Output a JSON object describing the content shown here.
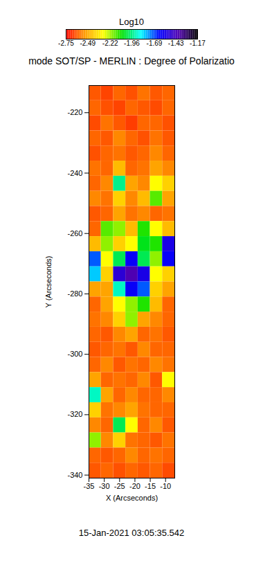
{
  "chart_data": {
    "type": "heatmap",
    "title": "mode SOT/SP - MERLIN : Degree of Polarizatio",
    "xlabel": "X (Arcseconds)",
    "ylabel": "Y (Arcseconds)",
    "xlim": [
      -35,
      -7
    ],
    "ylim": [
      -341,
      -211
    ],
    "xticks": [
      -35,
      -30,
      -25,
      -20,
      -15,
      -10
    ],
    "yticks": [
      -340,
      -320,
      -300,
      -280,
      -260,
      -240,
      -220
    ],
    "x_bins": [
      -35,
      -31,
      -27,
      -23,
      -19,
      -15,
      -11,
      -7
    ],
    "y_bins": [
      -211,
      -216,
      -221,
      -226,
      -231,
      -236,
      -241,
      -246,
      -251,
      -256,
      -261,
      -266,
      -271,
      -276,
      -281,
      -286,
      -291,
      -296,
      -301,
      -306,
      -311,
      -316,
      -321,
      -326,
      -331,
      -336,
      -341
    ],
    "values": [
      [
        -2.62,
        -2.65,
        -2.6,
        -2.63,
        -2.58,
        -2.62,
        -2.6
      ],
      [
        -2.6,
        -2.63,
        -2.65,
        -2.6,
        -2.62,
        -2.64,
        -2.6
      ],
      [
        -2.64,
        -2.58,
        -2.62,
        -2.66,
        -2.6,
        -2.6,
        -2.63
      ],
      [
        -2.6,
        -2.62,
        -2.55,
        -2.6,
        -2.63,
        -2.58,
        -2.62
      ],
      [
        -2.63,
        -2.6,
        -2.58,
        -2.62,
        -2.6,
        -2.55,
        -2.6
      ],
      [
        -2.58,
        -2.6,
        -2.45,
        -2.6,
        -2.58,
        -2.5,
        -2.55
      ],
      [
        -2.6,
        -2.55,
        -1.95,
        -2.5,
        -2.55,
        -2.3,
        -2.4
      ],
      [
        -2.55,
        -2.58,
        -2.4,
        -2.55,
        -2.45,
        -2.15,
        -2.5
      ],
      [
        -2.62,
        -2.6,
        -2.5,
        -2.58,
        -2.55,
        -2.6,
        -2.58
      ],
      [
        -2.6,
        -2.15,
        -2.2,
        -2.45,
        -2.1,
        -2.3,
        -2.45
      ],
      [
        -2.45,
        -2.2,
        -2.4,
        -2.3,
        -2.05,
        -2.1,
        -1.55
      ],
      [
        -1.7,
        -2.3,
        -2.0,
        -1.6,
        -2.0,
        -2.2,
        -1.6
      ],
      [
        -1.8,
        -2.4,
        -1.5,
        -1.4,
        -1.55,
        -2.3,
        -2.4
      ],
      [
        -2.5,
        -2.5,
        -1.9,
        -1.6,
        -1.7,
        -2.4,
        -2.5
      ],
      [
        -2.6,
        -2.5,
        -2.3,
        -2.2,
        -2.1,
        -2.45,
        -2.6
      ],
      [
        -2.58,
        -2.55,
        -2.4,
        -2.2,
        -2.5,
        -2.55,
        -2.6
      ],
      [
        -2.6,
        -2.62,
        -2.55,
        -2.5,
        -2.6,
        -2.58,
        -2.62
      ],
      [
        -2.62,
        -2.6,
        -2.58,
        -2.62,
        -2.55,
        -2.6,
        -2.6
      ],
      [
        -2.6,
        -2.55,
        -2.62,
        -2.58,
        -2.6,
        -2.55,
        -2.58
      ],
      [
        -2.5,
        -2.6,
        -2.58,
        -2.6,
        -2.55,
        -2.62,
        -2.3
      ],
      [
        -1.9,
        -2.5,
        -2.6,
        -2.55,
        -2.6,
        -2.6,
        -2.55
      ],
      [
        -2.4,
        -2.58,
        -2.55,
        -2.5,
        -2.58,
        -2.6,
        -2.6
      ],
      [
        -2.55,
        -2.6,
        -2.0,
        -2.3,
        -2.6,
        -2.55,
        -2.62
      ],
      [
        -2.2,
        -2.55,
        -2.4,
        -2.58,
        -2.6,
        -2.62,
        -2.58
      ],
      [
        -2.6,
        -2.62,
        -2.6,
        -2.55,
        -2.6,
        -2.58,
        -2.6
      ],
      [
        -2.62,
        -2.6,
        -2.63,
        -2.6,
        -2.62,
        -2.6,
        -2.64
      ]
    ],
    "colorbar": {
      "label": "Log10",
      "range": [
        -2.75,
        -1.17
      ],
      "ticks": [
        -2.75,
        -2.49,
        -2.22,
        -1.96,
        -1.69,
        -1.43,
        -1.17
      ]
    },
    "annotations": [
      "15-Jan-2021 03:05:35.542"
    ]
  }
}
